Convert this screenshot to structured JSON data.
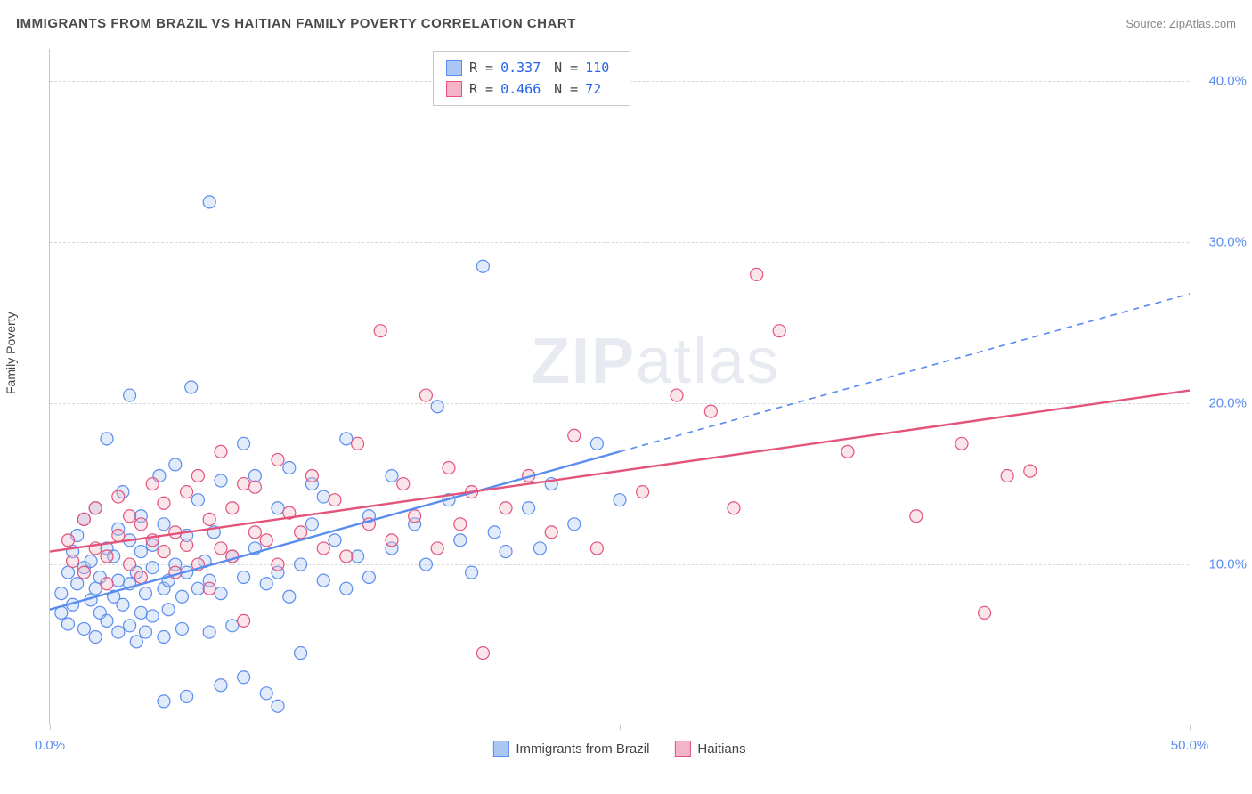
{
  "title": "IMMIGRANTS FROM BRAZIL VS HAITIAN FAMILY POVERTY CORRELATION CHART",
  "source": "Source: ZipAtlas.com",
  "watermark_prefix": "ZIP",
  "watermark_suffix": "atlas",
  "yaxis_title": "Family Poverty",
  "chart": {
    "type": "scatter",
    "xlim": [
      0,
      50
    ],
    "ylim": [
      0,
      42
    ],
    "xticks": [
      0,
      25,
      50
    ],
    "xtick_labels": [
      "0.0%",
      "",
      "50.0%"
    ],
    "yticks": [
      10,
      20,
      30,
      40
    ],
    "ytick_labels": [
      "10.0%",
      "20.0%",
      "30.0%",
      "40.0%"
    ],
    "grid_color": "#d8d8d8",
    "axis_color": "#c8c8c8",
    "background": "#ffffff",
    "marker_radius": 7,
    "marker_stroke_width": 1.2,
    "marker_fill_opacity": 0.35,
    "line_width": 2.4,
    "series": [
      {
        "name": "Immigrants from Brazil",
        "color": "#5b8def",
        "fill": "#aac6f2",
        "R": "0.337",
        "N": "110",
        "trend": {
          "x0": 0,
          "y0": 7.2,
          "x1_solid": 25,
          "y1_solid": 17.0,
          "x1_dash": 50,
          "y1_dash": 26.8
        },
        "points": [
          [
            0.5,
            7.0
          ],
          [
            0.5,
            8.2
          ],
          [
            0.8,
            9.5
          ],
          [
            0.8,
            6.3
          ],
          [
            1.0,
            10.8
          ],
          [
            1.0,
            7.5
          ],
          [
            1.2,
            8.8
          ],
          [
            1.2,
            11.8
          ],
          [
            1.5,
            6.0
          ],
          [
            1.5,
            9.8
          ],
          [
            1.5,
            12.8
          ],
          [
            1.8,
            7.8
          ],
          [
            1.8,
            10.2
          ],
          [
            2.0,
            8.5
          ],
          [
            2.0,
            5.5
          ],
          [
            2.0,
            13.5
          ],
          [
            2.2,
            9.2
          ],
          [
            2.2,
            7.0
          ],
          [
            2.5,
            11.0
          ],
          [
            2.5,
            6.5
          ],
          [
            2.5,
            17.8
          ],
          [
            2.8,
            8.0
          ],
          [
            2.8,
            10.5
          ],
          [
            3.0,
            5.8
          ],
          [
            3.0,
            12.2
          ],
          [
            3.0,
            9.0
          ],
          [
            3.2,
            7.5
          ],
          [
            3.2,
            14.5
          ],
          [
            3.5,
            8.8
          ],
          [
            3.5,
            6.2
          ],
          [
            3.5,
            11.5
          ],
          [
            3.5,
            20.5
          ],
          [
            3.8,
            5.2
          ],
          [
            3.8,
            9.5
          ],
          [
            4.0,
            10.8
          ],
          [
            4.0,
            7.0
          ],
          [
            4.0,
            13.0
          ],
          [
            4.2,
            8.2
          ],
          [
            4.2,
            5.8
          ],
          [
            4.5,
            9.8
          ],
          [
            4.5,
            11.2
          ],
          [
            4.5,
            6.8
          ],
          [
            4.8,
            15.5
          ],
          [
            5.0,
            8.5
          ],
          [
            5.0,
            12.5
          ],
          [
            5.0,
            5.5
          ],
          [
            5.0,
            1.5
          ],
          [
            5.2,
            9.0
          ],
          [
            5.2,
            7.2
          ],
          [
            5.5,
            10.0
          ],
          [
            5.5,
            16.2
          ],
          [
            5.8,
            8.0
          ],
          [
            5.8,
            6.0
          ],
          [
            6.0,
            11.8
          ],
          [
            6.0,
            9.5
          ],
          [
            6.0,
            1.8
          ],
          [
            6.2,
            21.0
          ],
          [
            6.5,
            8.5
          ],
          [
            6.5,
            14.0
          ],
          [
            6.8,
            10.2
          ],
          [
            7.0,
            5.8
          ],
          [
            7.0,
            9.0
          ],
          [
            7.0,
            32.5
          ],
          [
            7.2,
            12.0
          ],
          [
            7.5,
            8.2
          ],
          [
            7.5,
            15.2
          ],
          [
            7.5,
            2.5
          ],
          [
            8.0,
            10.5
          ],
          [
            8.0,
            6.2
          ],
          [
            8.5,
            9.2
          ],
          [
            8.5,
            17.5
          ],
          [
            8.5,
            3.0
          ],
          [
            9.0,
            11.0
          ],
          [
            9.0,
            15.5
          ],
          [
            9.5,
            8.8
          ],
          [
            9.5,
            2.0
          ],
          [
            10.0,
            13.5
          ],
          [
            10.0,
            9.5
          ],
          [
            10.0,
            1.2
          ],
          [
            10.5,
            8.0
          ],
          [
            10.5,
            16.0
          ],
          [
            11.0,
            10.0
          ],
          [
            11.0,
            4.5
          ],
          [
            11.5,
            12.5
          ],
          [
            11.5,
            15.0
          ],
          [
            12.0,
            9.0
          ],
          [
            12.0,
            14.2
          ],
          [
            12.5,
            11.5
          ],
          [
            13.0,
            8.5
          ],
          [
            13.0,
            17.8
          ],
          [
            13.5,
            10.5
          ],
          [
            14.0,
            9.2
          ],
          [
            14.0,
            13.0
          ],
          [
            15.0,
            11.0
          ],
          [
            15.0,
            15.5
          ],
          [
            16.0,
            12.5
          ],
          [
            16.5,
            10.0
          ],
          [
            17.0,
            19.8
          ],
          [
            17.5,
            14.0
          ],
          [
            18.0,
            11.5
          ],
          [
            18.5,
            9.5
          ],
          [
            19.0,
            28.5
          ],
          [
            19.5,
            12.0
          ],
          [
            20.0,
            10.8
          ],
          [
            21.0,
            13.5
          ],
          [
            21.5,
            11.0
          ],
          [
            22.0,
            15.0
          ],
          [
            23.0,
            12.5
          ],
          [
            24.0,
            17.5
          ],
          [
            25.0,
            14.0
          ]
        ]
      },
      {
        "name": "Haitians",
        "color": "#e4537a",
        "fill": "#f2b4c6",
        "R": "0.466",
        "N": "72",
        "trend": {
          "x0": 0,
          "y0": 10.8,
          "x1_solid": 50,
          "y1_solid": 20.8,
          "x1_dash": 50,
          "y1_dash": 20.8
        },
        "points": [
          [
            0.8,
            11.5
          ],
          [
            1.0,
            10.2
          ],
          [
            1.5,
            12.8
          ],
          [
            1.5,
            9.5
          ],
          [
            2.0,
            11.0
          ],
          [
            2.0,
            13.5
          ],
          [
            2.5,
            10.5
          ],
          [
            2.5,
            8.8
          ],
          [
            3.0,
            14.2
          ],
          [
            3.0,
            11.8
          ],
          [
            3.5,
            10.0
          ],
          [
            3.5,
            13.0
          ],
          [
            4.0,
            12.5
          ],
          [
            4.0,
            9.2
          ],
          [
            4.5,
            11.5
          ],
          [
            4.5,
            15.0
          ],
          [
            5.0,
            10.8
          ],
          [
            5.0,
            13.8
          ],
          [
            5.5,
            12.0
          ],
          [
            5.5,
            9.5
          ],
          [
            6.0,
            14.5
          ],
          [
            6.0,
            11.2
          ],
          [
            6.5,
            10.0
          ],
          [
            6.5,
            15.5
          ],
          [
            7.0,
            12.8
          ],
          [
            7.0,
            8.5
          ],
          [
            7.5,
            11.0
          ],
          [
            7.5,
            17.0
          ],
          [
            8.0,
            13.5
          ],
          [
            8.0,
            10.5
          ],
          [
            8.5,
            15.0
          ],
          [
            8.5,
            6.5
          ],
          [
            9.0,
            12.0
          ],
          [
            9.0,
            14.8
          ],
          [
            9.5,
            11.5
          ],
          [
            10.0,
            16.5
          ],
          [
            10.0,
            10.0
          ],
          [
            10.5,
            13.2
          ],
          [
            11.0,
            12.0
          ],
          [
            11.5,
            15.5
          ],
          [
            12.0,
            11.0
          ],
          [
            12.5,
            14.0
          ],
          [
            13.0,
            10.5
          ],
          [
            13.5,
            17.5
          ],
          [
            14.0,
            12.5
          ],
          [
            14.5,
            24.5
          ],
          [
            15.0,
            11.5
          ],
          [
            15.5,
            15.0
          ],
          [
            16.0,
            13.0
          ],
          [
            16.5,
            20.5
          ],
          [
            17.0,
            11.0
          ],
          [
            17.5,
            16.0
          ],
          [
            18.0,
            12.5
          ],
          [
            18.5,
            14.5
          ],
          [
            19.0,
            4.5
          ],
          [
            20.0,
            13.5
          ],
          [
            21.0,
            15.5
          ],
          [
            22.0,
            12.0
          ],
          [
            23.0,
            18.0
          ],
          [
            24.0,
            11.0
          ],
          [
            26.0,
            14.5
          ],
          [
            27.5,
            20.5
          ],
          [
            29.0,
            19.5
          ],
          [
            30.0,
            13.5
          ],
          [
            31.0,
            28.0
          ],
          [
            32.0,
            24.5
          ],
          [
            35.0,
            17.0
          ],
          [
            38.0,
            13.0
          ],
          [
            40.0,
            17.5
          ],
          [
            42.0,
            15.5
          ],
          [
            43.0,
            15.8
          ],
          [
            41.0,
            7.0
          ]
        ]
      }
    ]
  },
  "legend_top": {
    "rows": [
      {
        "swatch_fill": "#aac6f2",
        "swatch_border": "#5b8def",
        "r_label": "R =",
        "r_val": "0.337",
        "n_label": "N =",
        "n_val": "110"
      },
      {
        "swatch_fill": "#f2b4c6",
        "swatch_border": "#e4537a",
        "r_label": "R =",
        "r_val": "0.466",
        "n_label": "N =",
        "n_val": " 72"
      }
    ]
  },
  "legend_bottom": [
    {
      "swatch_fill": "#aac6f2",
      "swatch_border": "#5b8def",
      "label": "Immigrants from Brazil"
    },
    {
      "swatch_fill": "#f2b4c6",
      "swatch_border": "#e4537a",
      "label": "Haitians"
    }
  ]
}
